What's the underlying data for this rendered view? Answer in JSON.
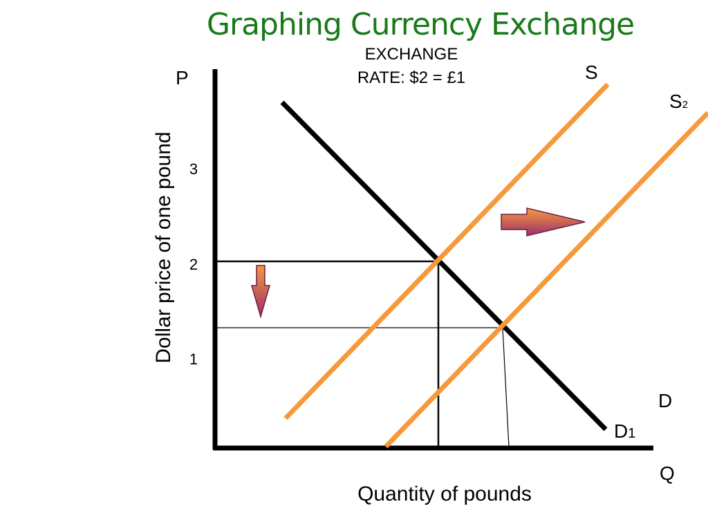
{
  "title": "Graphing Currency Exchange",
  "exchange_rate": {
    "line1": "EXCHANGE",
    "line2": "RATE: $2 = £1"
  },
  "axes": {
    "y_symbol": "P",
    "x_symbol": "Q",
    "y_label": "Dollar price of one pound",
    "x_label": "Quantity of pounds",
    "y_ticks": [
      "3",
      "2",
      "1"
    ]
  },
  "curves": {
    "supply": "S",
    "supply_shift_main": "S",
    "supply_shift_sub": "2",
    "demand": "D",
    "demand_shift_main": "D",
    "demand_shift_sub": "1"
  },
  "colors": {
    "supply_curve": "#f7993a",
    "demand_curve": "#000000",
    "title": "#1a7a1a",
    "arrow_top": "#f7993a",
    "arrow_bottom": "#9b2f6e"
  }
}
